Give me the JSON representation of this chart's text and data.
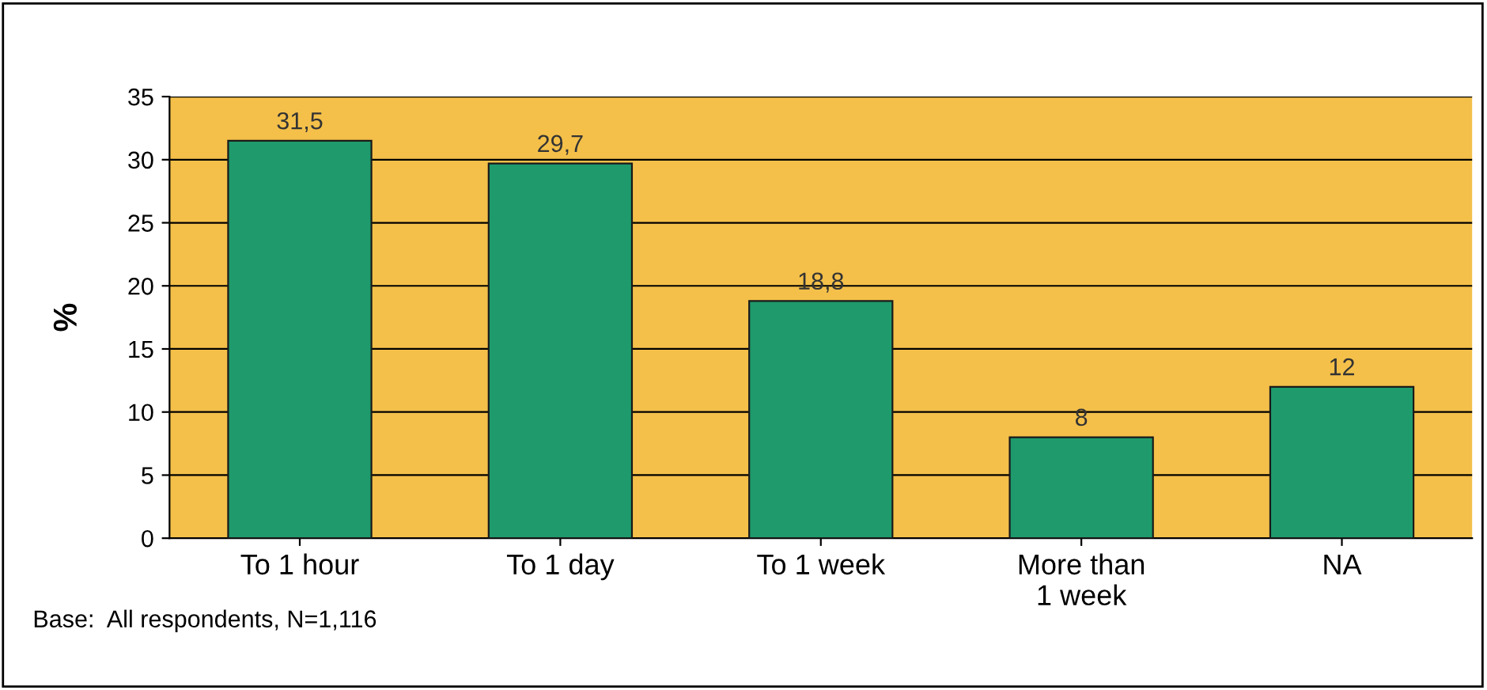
{
  "chart_data": {
    "type": "bar",
    "ylabel": "%",
    "categories": [
      "To 1 hour",
      "To 1 day",
      "To 1 week",
      "More than\n1 week",
      "NA"
    ],
    "values": [
      31.5,
      29.7,
      18.8,
      8,
      12
    ],
    "value_labels": [
      "31,5",
      "29,7",
      "18,8",
      "8",
      "12"
    ],
    "color": "#1f9a6c",
    "ylim": [
      0,
      35
    ],
    "yticks": [
      0,
      5,
      10,
      15,
      20,
      25,
      30,
      35
    ],
    "grid": "y",
    "legend": false,
    "annotations": [
      "Base:  All respondents, N=1,116"
    ]
  }
}
